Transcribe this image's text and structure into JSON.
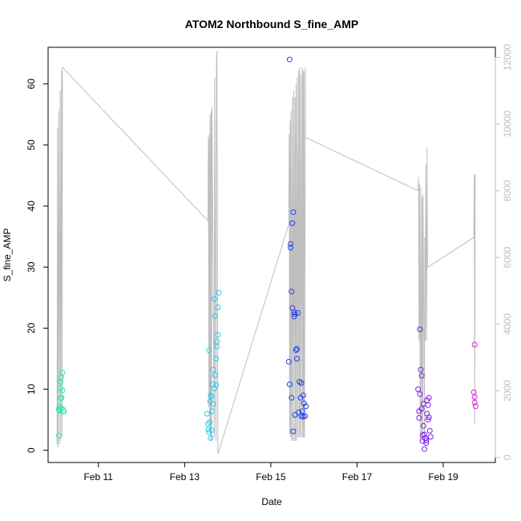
{
  "chart_data": {
    "type": "scatter",
    "title": "ATOM2 Northbound S_fine_AMP",
    "xlabel": "Date",
    "ylabel": "S_fine_AMP",
    "x_unit": "date",
    "xlim": [
      "2024-02-09T20:00",
      "2024-02-20T05:00"
    ],
    "ylim": [
      -2,
      66
    ],
    "y2lim": [
      -150,
      12300
    ],
    "x_ticks": [
      {
        "date": "2024-02-11T00:00",
        "label": "Feb 11"
      },
      {
        "date": "2024-02-13T00:00",
        "label": "Feb 13"
      },
      {
        "date": "2024-02-15T00:00",
        "label": "Feb 15"
      },
      {
        "date": "2024-02-17T00:00",
        "label": "Feb 17"
      },
      {
        "date": "2024-02-19T00:00",
        "label": "Feb 19"
      }
    ],
    "y_ticks": [
      0,
      10,
      20,
      30,
      40,
      50,
      60
    ],
    "y2_ticks": [
      0,
      2000,
      4000,
      6000,
      8000,
      10000,
      12000
    ],
    "grid": false,
    "line_color": "#bebebe",
    "point_colors": [
      "#2ee8a8",
      "#29c8f0",
      "#1f3ef0",
      "#7a1fe8",
      "#e020e0"
    ],
    "series": [
      {
        "color": "#2ee8a8",
        "points": [
          [
            "2024-02-10T02:00",
            2.4
          ],
          [
            "2024-02-10T02:00",
            6.8
          ],
          [
            "2024-02-10T02:30",
            7.2
          ],
          [
            "2024-02-10T02:30",
            6.5
          ],
          [
            "2024-02-10T02:45",
            10.1
          ],
          [
            "2024-02-10T03:00",
            8.5
          ],
          [
            "2024-02-10T03:00",
            11.2
          ],
          [
            "2024-02-10T03:15",
            11.9
          ],
          [
            "2024-02-10T03:30",
            8.6
          ],
          [
            "2024-02-10T03:30",
            6.9
          ],
          [
            "2024-02-10T04:00",
            9.8
          ],
          [
            "2024-02-10T04:00",
            12.7
          ],
          [
            "2024-02-10T04:30",
            6.6
          ],
          [
            "2024-02-10T04:45",
            6.3
          ],
          [
            "2024-02-10T02:15",
            6.6
          ]
        ]
      },
      {
        "color": "#29c8f0",
        "points": [
          [
            "2024-02-13T12:30",
            6.0
          ],
          [
            "2024-02-13T13:00",
            4.3
          ],
          [
            "2024-02-13T13:15",
            3.4
          ],
          [
            "2024-02-13T13:30",
            3.0
          ],
          [
            "2024-02-13T13:30",
            16.4
          ],
          [
            "2024-02-13T14:00",
            4.6
          ],
          [
            "2024-02-13T14:15",
            8.0
          ],
          [
            "2024-02-13T14:30",
            2.0
          ],
          [
            "2024-02-13T14:30",
            9.0
          ],
          [
            "2024-02-13T15:00",
            3.3
          ],
          [
            "2024-02-13T15:00",
            8.8
          ],
          [
            "2024-02-13T15:15",
            6.4
          ],
          [
            "2024-02-13T15:30",
            10.8
          ],
          [
            "2024-02-13T16:00",
            7.6
          ],
          [
            "2024-02-13T16:00",
            13.2
          ],
          [
            "2024-02-13T16:30",
            10.1
          ],
          [
            "2024-02-13T16:30",
            24.8
          ],
          [
            "2024-02-13T17:00",
            22.0
          ],
          [
            "2024-02-13T17:00",
            12.3
          ],
          [
            "2024-02-13T17:30",
            10.7
          ],
          [
            "2024-02-13T17:30",
            15.0
          ],
          [
            "2024-02-13T18:00",
            17.8
          ],
          [
            "2024-02-13T18:00",
            17.0
          ],
          [
            "2024-02-13T18:30",
            18.9
          ],
          [
            "2024-02-13T18:30",
            23.4
          ],
          [
            "2024-02-13T19:00",
            25.8
          ]
        ]
      },
      {
        "color": "#1f3ef0",
        "points": [
          [
            "2024-02-15T10:00",
            14.5
          ],
          [
            "2024-02-15T10:30",
            10.8
          ],
          [
            "2024-02-15T10:30",
            64.0
          ],
          [
            "2024-02-15T11:00",
            33.8
          ],
          [
            "2024-02-15T11:00",
            33.2
          ],
          [
            "2024-02-15T11:30",
            8.6
          ],
          [
            "2024-02-15T11:30",
            26.0
          ],
          [
            "2024-02-15T12:00",
            37.2
          ],
          [
            "2024-02-15T12:00",
            23.3
          ],
          [
            "2024-02-15T12:30",
            39.0
          ],
          [
            "2024-02-15T12:30",
            3.1
          ],
          [
            "2024-02-15T13:00",
            22.6
          ],
          [
            "2024-02-15T13:00",
            21.9
          ],
          [
            "2024-02-15T13:30",
            22.3
          ],
          [
            "2024-02-15T13:30",
            5.8
          ],
          [
            "2024-02-15T14:00",
            16.4
          ],
          [
            "2024-02-15T14:30",
            15.0
          ],
          [
            "2024-02-15T14:30",
            16.6
          ],
          [
            "2024-02-15T15:00",
            22.5
          ],
          [
            "2024-02-15T15:30",
            6.2
          ],
          [
            "2024-02-15T16:00",
            11.2
          ],
          [
            "2024-02-15T16:30",
            8.6
          ],
          [
            "2024-02-15T17:00",
            11.0
          ],
          [
            "2024-02-15T17:00",
            5.6
          ],
          [
            "2024-02-15T17:30",
            6.4
          ],
          [
            "2024-02-15T18:00",
            9.0
          ],
          [
            "2024-02-15T18:00",
            5.5
          ],
          [
            "2024-02-15T18:30",
            7.7
          ],
          [
            "2024-02-15T19:00",
            5.6
          ],
          [
            "2024-02-15T19:30",
            7.2
          ]
        ]
      },
      {
        "color": "#7a1fe8",
        "points": [
          [
            "2024-02-18T10:00",
            10.0
          ],
          [
            "2024-02-18T10:30",
            6.4
          ],
          [
            "2024-02-18T10:30",
            5.3
          ],
          [
            "2024-02-18T11:00",
            19.8
          ],
          [
            "2024-02-18T11:00",
            9.2
          ],
          [
            "2024-02-18T11:30",
            13.2
          ],
          [
            "2024-02-18T12:00",
            12.2
          ],
          [
            "2024-02-18T12:00",
            6.8
          ],
          [
            "2024-02-18T12:30",
            2.5
          ],
          [
            "2024-02-18T12:30",
            1.5
          ],
          [
            "2024-02-18T13:00",
            7.6
          ],
          [
            "2024-02-18T13:00",
            4.0
          ],
          [
            "2024-02-18T13:30",
            2.6
          ],
          [
            "2024-02-18T13:30",
            0.2
          ],
          [
            "2024-02-18T14:00",
            2.0
          ],
          [
            "2024-02-18T14:30",
            1.2
          ],
          [
            "2024-02-18T14:30",
            1.6
          ],
          [
            "2024-02-18T15:00",
            8.2
          ],
          [
            "2024-02-18T15:00",
            6.0
          ],
          [
            "2024-02-18T15:30",
            5.0
          ],
          [
            "2024-02-18T15:30",
            7.4
          ],
          [
            "2024-02-18T16:00",
            5.4
          ],
          [
            "2024-02-18T16:00",
            8.6
          ],
          [
            "2024-02-18T16:30",
            3.2
          ],
          [
            "2024-02-18T17:00",
            2.2
          ]
        ]
      },
      {
        "color": "#e020e0",
        "points": [
          [
            "2024-02-19T17:00",
            9.5
          ],
          [
            "2024-02-19T17:30",
            17.3
          ],
          [
            "2024-02-19T17:30",
            8.7
          ],
          [
            "2024-02-19T17:30",
            7.8
          ],
          [
            "2024-02-19T18:00",
            7.2
          ]
        ]
      }
    ],
    "line_series": {
      "axis": "right",
      "points": [
        [
          "2024-02-10T01:00",
          400
        ],
        [
          "2024-02-10T01:15",
          9900
        ],
        [
          "2024-02-10T01:30",
          300
        ],
        [
          "2024-02-10T02:00",
          10400
        ],
        [
          "2024-02-10T02:15",
          400
        ],
        [
          "2024-02-10T02:45",
          11000
        ],
        [
          "2024-02-10T03:00",
          500
        ],
        [
          "2024-02-10T03:30",
          11600
        ],
        [
          "2024-02-10T03:45",
          600
        ],
        [
          "2024-02-10T04:00",
          11700
        ],
        [
          "2024-02-13T13:00",
          7100
        ],
        [
          "2024-02-13T13:15",
          9600
        ],
        [
          "2024-02-13T13:30",
          1500
        ],
        [
          "2024-02-13T13:45",
          9700
        ],
        [
          "2024-02-13T14:00",
          1000
        ],
        [
          "2024-02-13T14:15",
          10300
        ],
        [
          "2024-02-13T14:30",
          500
        ],
        [
          "2024-02-13T14:45",
          10400
        ],
        [
          "2024-02-13T15:00",
          500
        ],
        [
          "2024-02-13T15:15",
          10500
        ],
        [
          "2024-02-13T16:30",
          600
        ],
        [
          "2024-02-13T16:45",
          11400
        ],
        [
          "2024-02-13T17:30",
          500
        ],
        [
          "2024-02-13T17:45",
          11900
        ],
        [
          "2024-02-13T18:00",
          12200
        ],
        [
          "2024-02-13T18:30",
          100
        ],
        [
          "2024-02-15T10:00",
          7000
        ],
        [
          "2024-02-15T10:15",
          9700
        ],
        [
          "2024-02-15T10:30",
          700
        ],
        [
          "2024-02-15T10:45",
          10100
        ],
        [
          "2024-02-15T11:00",
          600
        ],
        [
          "2024-02-15T11:15",
          10400
        ],
        [
          "2024-02-15T11:30",
          500
        ],
        [
          "2024-02-15T12:00",
          10800
        ],
        [
          "2024-02-15T12:15",
          500
        ],
        [
          "2024-02-15T12:45",
          11000
        ],
        [
          "2024-02-15T13:00",
          500
        ],
        [
          "2024-02-15T13:30",
          10800
        ],
        [
          "2024-02-15T13:45",
          500
        ],
        [
          "2024-02-15T14:00",
          11200
        ],
        [
          "2024-02-15T14:15",
          500
        ],
        [
          "2024-02-15T14:45",
          11400
        ],
        [
          "2024-02-15T15:00",
          600
        ],
        [
          "2024-02-15T15:30",
          11600
        ],
        [
          "2024-02-15T15:45",
          600
        ],
        [
          "2024-02-15T16:00",
          11700
        ],
        [
          "2024-02-15T16:15",
          600
        ],
        [
          "2024-02-15T16:45",
          11500
        ],
        [
          "2024-02-15T17:00",
          600
        ],
        [
          "2024-02-15T17:30",
          11700
        ],
        [
          "2024-02-15T17:45",
          600
        ],
        [
          "2024-02-15T18:00",
          11600
        ],
        [
          "2024-02-15T18:15",
          600
        ],
        [
          "2024-02-15T18:30",
          11600
        ],
        [
          "2024-02-15T18:45",
          600
        ],
        [
          "2024-02-15T19:15",
          11700
        ],
        [
          "2024-02-15T19:15",
          9600
        ],
        [
          "2024-02-18T10:00",
          8000
        ],
        [
          "2024-02-18T10:15",
          8400
        ],
        [
          "2024-02-18T10:30",
          3500
        ],
        [
          "2024-02-18T10:45",
          8200
        ],
        [
          "2024-02-18T11:15",
          500
        ],
        [
          "2024-02-18T11:30",
          8100
        ],
        [
          "2024-02-18T12:00",
          500
        ],
        [
          "2024-02-18T12:15",
          7800
        ],
        [
          "2024-02-18T12:30",
          600
        ],
        [
          "2024-02-18T12:45",
          7900
        ],
        [
          "2024-02-18T13:30",
          500
        ],
        [
          "2024-02-18T13:45",
          6600
        ],
        [
          "2024-02-18T14:00",
          3500
        ],
        [
          "2024-02-18T14:15",
          8800
        ],
        [
          "2024-02-18T14:45",
          3500
        ],
        [
          "2024-02-18T15:00",
          9300
        ],
        [
          "2024-02-18T15:15",
          5700
        ],
        [
          "2024-02-19T17:00",
          6600
        ],
        [
          "2024-02-19T17:15",
          8500
        ],
        [
          "2024-02-19T17:30",
          1000
        ],
        [
          "2024-02-19T17:45",
          8500
        ]
      ]
    }
  }
}
